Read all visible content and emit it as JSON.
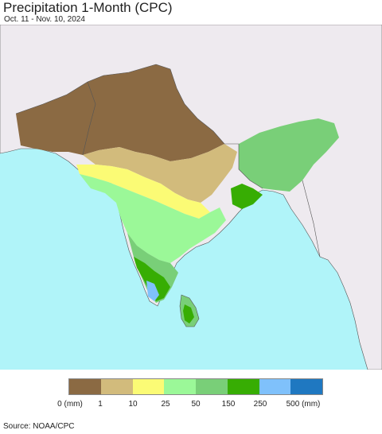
{
  "header": {
    "title": "Precipitation 1-Month (CPC)",
    "date_range": "Oct. 11 - Nov. 10, 2024"
  },
  "map": {
    "land_color": "#eeeaef",
    "ocean_color": "#b0f4f9",
    "border_color": "#555555"
  },
  "legend": {
    "swatches": [
      {
        "color": "#8b6a43"
      },
      {
        "color": "#d2bb7c"
      },
      {
        "color": "#fbfb75"
      },
      {
        "color": "#9bf898"
      },
      {
        "color": "#79cf78"
      },
      {
        "color": "#37ad03"
      },
      {
        "color": "#7fc1fb"
      },
      {
        "color": "#1f78c1"
      }
    ],
    "labels": [
      "0 (mm)",
      "1",
      "10",
      "25",
      "50",
      "150",
      "250",
      "500 (mm)"
    ]
  },
  "footer": {
    "source": "Source: NOAA/CPC"
  }
}
